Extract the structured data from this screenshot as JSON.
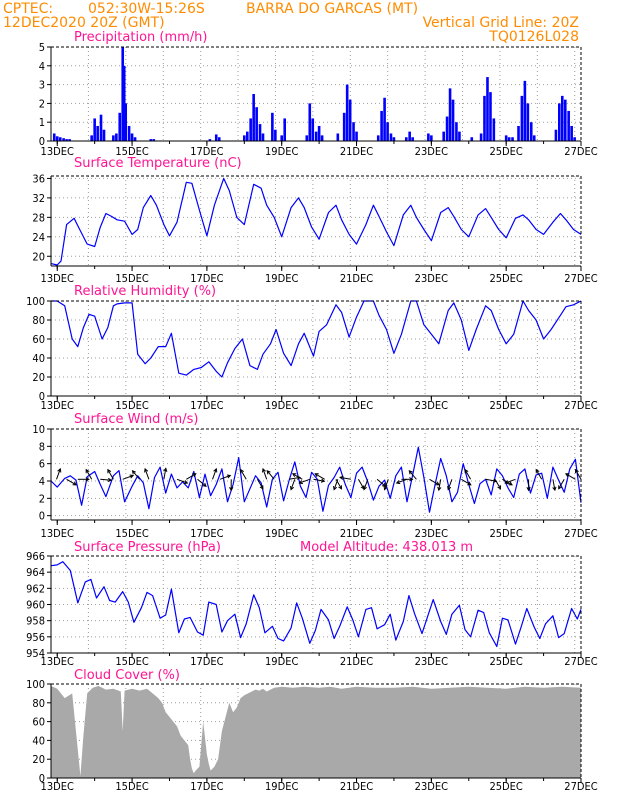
{
  "header": {
    "source": "CPTEC:",
    "coords": "052:30W-15:26S",
    "location": "BARRA DO GARCAS (MT)",
    "time": "12DEC2020 20Z (GMT)",
    "grid_note": "Vertical Grid Line: 20Z",
    "code": "TQ0126L028"
  },
  "colors": {
    "header": "#ff8c00",
    "title": "#ff1493",
    "line": "#0000ff",
    "cloud": "#a9a9a9",
    "grid": "#9e9e9e"
  },
  "x_axis": {
    "start_day": 12.833,
    "end_day": 27,
    "major_ticks": [
      13,
      15,
      17,
      19,
      21,
      23,
      25,
      27
    ],
    "tick_labels": [
      "13DEC",
      "15DEC",
      "17DEC",
      "19DEC",
      "21DEC",
      "23DEC",
      "25DEC",
      "27DEC"
    ]
  },
  "chart_data": [
    {
      "type": "bar",
      "title": "Precipitation (mm/h)",
      "ylim": [
        0,
        5
      ],
      "yticks": [
        0,
        1,
        2,
        3,
        4,
        5
      ],
      "bars": [
        [
          12.92,
          0.4
        ],
        [
          13.0,
          0.25
        ],
        [
          13.08,
          0.2
        ],
        [
          13.17,
          0.15
        ],
        [
          13.25,
          0.1
        ],
        [
          13.33,
          0.1
        ],
        [
          13.92,
          0.3
        ],
        [
          14.0,
          1.2
        ],
        [
          14.08,
          0.8
        ],
        [
          14.17,
          1.4
        ],
        [
          14.25,
          0.6
        ],
        [
          14.5,
          0.3
        ],
        [
          14.58,
          0.4
        ],
        [
          14.67,
          1.5
        ],
        [
          14.75,
          5.0
        ],
        [
          14.79,
          4.0
        ],
        [
          14.83,
          2.0
        ],
        [
          14.92,
          0.8
        ],
        [
          15.0,
          0.4
        ],
        [
          15.08,
          0.2
        ],
        [
          15.5,
          0.1
        ],
        [
          15.58,
          0.1
        ],
        [
          17.08,
          0.1
        ],
        [
          17.25,
          0.35
        ],
        [
          17.33,
          0.2
        ],
        [
          18.0,
          0.3
        ],
        [
          18.08,
          0.5
        ],
        [
          18.17,
          1.2
        ],
        [
          18.25,
          2.5
        ],
        [
          18.33,
          1.8
        ],
        [
          18.42,
          0.9
        ],
        [
          18.5,
          0.4
        ],
        [
          18.75,
          1.5
        ],
        [
          18.83,
          0.6
        ],
        [
          19.0,
          0.3
        ],
        [
          19.08,
          1.2
        ],
        [
          19.67,
          0.3
        ],
        [
          19.75,
          2.0
        ],
        [
          19.83,
          1.2
        ],
        [
          19.92,
          0.5
        ],
        [
          20.0,
          0.8
        ],
        [
          20.08,
          0.3
        ],
        [
          20.5,
          0.4
        ],
        [
          20.67,
          1.5
        ],
        [
          20.75,
          3.0
        ],
        [
          20.83,
          2.2
        ],
        [
          20.92,
          1.0
        ],
        [
          21.0,
          0.5
        ],
        [
          21.58,
          0.3
        ],
        [
          21.67,
          1.6
        ],
        [
          21.75,
          2.3
        ],
        [
          21.83,
          1.0
        ],
        [
          21.92,
          0.4
        ],
        [
          22.0,
          0.2
        ],
        [
          22.33,
          0.2
        ],
        [
          22.42,
          0.5
        ],
        [
          22.5,
          0.2
        ],
        [
          22.92,
          0.4
        ],
        [
          23.0,
          0.3
        ],
        [
          23.33,
          0.5
        ],
        [
          23.42,
          1.3
        ],
        [
          23.5,
          2.8
        ],
        [
          23.58,
          2.2
        ],
        [
          23.67,
          1.0
        ],
        [
          23.75,
          0.5
        ],
        [
          24.08,
          0.2
        ],
        [
          24.33,
          0.4
        ],
        [
          24.42,
          2.4
        ],
        [
          24.5,
          3.4
        ],
        [
          24.58,
          2.6
        ],
        [
          24.67,
          1.2
        ],
        [
          25.0,
          0.3
        ],
        [
          25.08,
          0.2
        ],
        [
          25.17,
          0.2
        ],
        [
          25.33,
          0.8
        ],
        [
          25.42,
          2.4
        ],
        [
          25.5,
          3.2
        ],
        [
          25.58,
          2.0
        ],
        [
          25.67,
          1.0
        ],
        [
          25.75,
          0.3
        ],
        [
          26.33,
          0.6
        ],
        [
          26.42,
          2.0
        ],
        [
          26.5,
          2.4
        ],
        [
          26.58,
          2.2
        ],
        [
          26.67,
          1.6
        ],
        [
          26.75,
          0.8
        ],
        [
          26.83,
          0.2
        ]
      ]
    },
    {
      "type": "line",
      "title": "Surface Temperature (nC)",
      "ylim": [
        18,
        36.5
      ],
      "yticks": [
        20,
        24,
        28,
        32,
        36
      ],
      "x": [
        12.83,
        13.0,
        13.1,
        13.25,
        13.45,
        13.6,
        13.8,
        14.0,
        14.15,
        14.3,
        14.45,
        14.6,
        14.8,
        15.0,
        15.15,
        15.3,
        15.5,
        15.65,
        15.85,
        16.0,
        16.2,
        16.45,
        16.6,
        16.8,
        17.0,
        17.2,
        17.45,
        17.6,
        17.8,
        18.0,
        18.25,
        18.45,
        18.6,
        18.8,
        19.0,
        19.25,
        19.45,
        19.6,
        19.8,
        20.0,
        20.25,
        20.45,
        20.6,
        20.8,
        21.0,
        21.25,
        21.45,
        21.6,
        21.8,
        22.0,
        22.25,
        22.45,
        22.6,
        22.8,
        23.0,
        23.25,
        23.45,
        23.6,
        23.8,
        24.0,
        24.25,
        24.45,
        24.6,
        24.8,
        25.0,
        25.25,
        25.45,
        25.6,
        25.8,
        26.0,
        26.25,
        26.45,
        26.6,
        26.8,
        27.0
      ],
      "y": [
        18.5,
        18.2,
        19,
        26.5,
        27.8,
        25.5,
        22.5,
        22,
        26,
        28.8,
        28.2,
        27.5,
        27.2,
        24.5,
        25.5,
        30,
        32.5,
        30.5,
        26.5,
        24.2,
        27,
        35.2,
        35,
        29.5,
        24.2,
        30.5,
        36,
        33.5,
        28,
        26.5,
        34.8,
        34,
        30.5,
        28,
        24,
        30,
        32,
        30,
        26,
        23.5,
        29,
        30.5,
        27.5,
        24.5,
        22.5,
        26.5,
        30.5,
        28.2,
        25,
        22.2,
        28.5,
        30.5,
        28,
        25.5,
        23.2,
        29,
        30,
        28.2,
        25.5,
        24,
        28.5,
        29.8,
        28,
        25.5,
        23.8,
        27.8,
        28.5,
        27.5,
        25.5,
        24.5,
        27,
        28.8,
        27.5,
        25.5,
        24.5
      ]
    },
    {
      "type": "line",
      "title": "Relative Humidity (%)",
      "ylim": [
        0,
        100
      ],
      "yticks": [
        0,
        20,
        40,
        60,
        80,
        100
      ],
      "x": [
        12.83,
        13.0,
        13.2,
        13.4,
        13.55,
        13.7,
        13.85,
        14.0,
        14.2,
        14.35,
        14.5,
        14.6,
        14.8,
        15.0,
        15.15,
        15.35,
        15.5,
        15.7,
        15.9,
        16.05,
        16.25,
        16.45,
        16.65,
        16.85,
        17.05,
        17.25,
        17.4,
        17.55,
        17.75,
        17.95,
        18.15,
        18.35,
        18.5,
        18.7,
        18.85,
        19.05,
        19.25,
        19.45,
        19.6,
        19.85,
        20.0,
        20.2,
        20.45,
        20.6,
        20.8,
        21.0,
        21.2,
        21.45,
        21.6,
        21.8,
        22.0,
        22.2,
        22.45,
        22.6,
        22.8,
        23.0,
        23.2,
        23.45,
        23.6,
        23.8,
        24.0,
        24.2,
        24.45,
        24.6,
        24.8,
        25.0,
        25.2,
        25.45,
        25.6,
        25.8,
        26.0,
        26.2,
        26.45,
        26.6,
        26.8,
        27.0
      ],
      "y": [
        100,
        100,
        95,
        60,
        52,
        72,
        86,
        84,
        60,
        72,
        95,
        97,
        98,
        98,
        44,
        34,
        40,
        52,
        52,
        66,
        24,
        22,
        28,
        30,
        36,
        26,
        20,
        35,
        50,
        60,
        32,
        28,
        44,
        55,
        70,
        45,
        32,
        55,
        66,
        42,
        68,
        75,
        96,
        88,
        62,
        83,
        100,
        100,
        85,
        70,
        45,
        65,
        100,
        100,
        75,
        65,
        55,
        90,
        98,
        80,
        48,
        70,
        95,
        90,
        70,
        55,
        65,
        100,
        90,
        80,
        60,
        70,
        85,
        94,
        96,
        100
      ]
    },
    {
      "type": "line",
      "title": "Surface Wind (m/s)",
      "ylim": [
        -0.5,
        10
      ],
      "yticks": [
        0,
        2,
        4,
        6,
        8,
        10
      ],
      "x": [
        12.83,
        13.0,
        13.2,
        13.35,
        13.5,
        13.65,
        13.8,
        14.0,
        14.15,
        14.3,
        14.5,
        14.65,
        14.8,
        15.0,
        15.15,
        15.3,
        15.45,
        15.6,
        15.75,
        15.9,
        16.05,
        16.2,
        16.35,
        16.5,
        16.65,
        16.8,
        16.95,
        17.1,
        17.25,
        17.4,
        17.55,
        17.7,
        17.85,
        18.0,
        18.15,
        18.3,
        18.45,
        18.6,
        18.75,
        18.9,
        19.05,
        19.2,
        19.35,
        19.5,
        19.65,
        19.8,
        19.95,
        20.1,
        20.25,
        20.4,
        20.55,
        20.7,
        20.85,
        21.0,
        21.15,
        21.3,
        21.45,
        21.6,
        21.75,
        21.9,
        22.05,
        22.2,
        22.35,
        22.5,
        22.65,
        22.8,
        22.95,
        23.1,
        23.25,
        23.4,
        23.55,
        23.7,
        23.85,
        24.0,
        24.15,
        24.3,
        24.45,
        24.6,
        24.75,
        24.9,
        25.05,
        25.2,
        25.35,
        25.5,
        25.65,
        25.8,
        25.95,
        26.1,
        26.25,
        26.4,
        26.55,
        26.7,
        26.85,
        27.0
      ],
      "y": [
        4,
        3.3,
        4.3,
        4.6,
        4.1,
        1.2,
        4.5,
        5.1,
        3.6,
        2.2,
        4.6,
        5.2,
        1.6,
        3.4,
        4.6,
        3.8,
        0.8,
        4.4,
        5.6,
        2.6,
        4.8,
        3.2,
        3.9,
        3.2,
        5.1,
        2.1,
        4.8,
        2.3,
        3.6,
        5.4,
        1.6,
        3.6,
        6.7,
        1.6,
        3.1,
        4.6,
        3.8,
        1.0,
        4.2,
        5.0,
        1.7,
        4.1,
        6.2,
        3.4,
        2.1,
        5.0,
        4.2,
        0.5,
        3.5,
        4.4,
        5.6,
        3.6,
        2.1,
        4.9,
        5.6,
        3.9,
        1.8,
        3.4,
        4.1,
        2.0,
        4.6,
        5.6,
        1.6,
        4.7,
        7.9,
        4.4,
        0.4,
        3.6,
        6.6,
        4.6,
        1.6,
        2.7,
        6.0,
        3.6,
        1.4,
        3.7,
        4.2,
        2.4,
        5.4,
        4.6,
        3.2,
        2.1,
        4.8,
        5.4,
        2.6,
        4.7,
        4.9,
        2.0,
        5.6,
        4.1,
        2.7,
        5.4,
        6.5,
        1.5
      ]
    },
    {
      "type": "line",
      "title": "Surface Pressure (hPa)",
      "annotation": "Model Altitude: 438.013 m",
      "ylim": [
        954,
        966
      ],
      "yticks": [
        954,
        956,
        958,
        960,
        962,
        964,
        966
      ],
      "x": [
        12.83,
        13.0,
        13.15,
        13.35,
        13.55,
        13.75,
        13.9,
        14.05,
        14.25,
        14.4,
        14.55,
        14.75,
        14.9,
        15.05,
        15.25,
        15.4,
        15.55,
        15.75,
        15.9,
        16.05,
        16.25,
        16.4,
        16.55,
        16.75,
        16.9,
        17.05,
        17.25,
        17.4,
        17.55,
        17.75,
        17.9,
        18.05,
        18.25,
        18.4,
        18.55,
        18.75,
        18.9,
        19.05,
        19.25,
        19.4,
        19.55,
        19.75,
        19.9,
        20.05,
        20.25,
        20.4,
        20.55,
        20.75,
        20.9,
        21.05,
        21.25,
        21.4,
        21.55,
        21.75,
        21.9,
        22.05,
        22.25,
        22.4,
        22.55,
        22.75,
        22.9,
        23.05,
        23.25,
        23.4,
        23.55,
        23.75,
        23.9,
        24.05,
        24.25,
        24.4,
        24.55,
        24.75,
        24.9,
        25.05,
        25.25,
        25.4,
        25.55,
        25.75,
        25.9,
        26.05,
        26.25,
        26.4,
        26.55,
        26.75,
        26.9,
        27.0
      ],
      "y": [
        964.8,
        964.9,
        965.3,
        964.2,
        960.2,
        962.8,
        963.1,
        960.8,
        962.2,
        960.5,
        960.3,
        961.6,
        960.3,
        957.8,
        959.6,
        961.5,
        961.1,
        958.3,
        958.7,
        961.9,
        956.5,
        958.2,
        958.4,
        956.6,
        956.2,
        960.3,
        960.0,
        956.6,
        958.0,
        958.8,
        955.9,
        957.6,
        961.2,
        959.6,
        956.5,
        957.3,
        955.8,
        955.5,
        957.1,
        960.2,
        958.3,
        955.2,
        956.8,
        959.4,
        958.1,
        955.8,
        957.3,
        959.7,
        958.1,
        956.0,
        959.4,
        959.6,
        957.0,
        957.5,
        958.8,
        955.6,
        957.9,
        961.1,
        958.9,
        956.4,
        958.5,
        960.6,
        957.9,
        956.3,
        958.8,
        959.9,
        956.9,
        956.0,
        959.3,
        959.0,
        956.5,
        954.8,
        958.3,
        958.1,
        955.1,
        957.2,
        959.5,
        957.2,
        955.8,
        957.6,
        958.6,
        955.9,
        956.4,
        959.5,
        958.2,
        959.4
      ]
    },
    {
      "type": "area",
      "title": "Cloud Cover (%)",
      "ylim": [
        0,
        100
      ],
      "yticks": [
        0,
        20,
        40,
        60,
        80,
        100
      ],
      "x": [
        12.83,
        13.0,
        13.2,
        13.4,
        13.55,
        13.62,
        13.7,
        13.8,
        13.95,
        14.1,
        14.3,
        14.5,
        14.7,
        14.75,
        14.8,
        15.0,
        15.2,
        15.4,
        15.55,
        15.7,
        15.8,
        15.9,
        16.0,
        16.1,
        16.2,
        16.3,
        16.4,
        16.5,
        16.55,
        16.6,
        16.65,
        16.7,
        16.8,
        16.9,
        17.0,
        17.05,
        17.1,
        17.15,
        17.2,
        17.3,
        17.4,
        17.5,
        17.6,
        17.7,
        17.8,
        17.9,
        18.0,
        18.1,
        18.2,
        18.3,
        18.4,
        18.5,
        18.6,
        18.7,
        18.8,
        19.0,
        19.3,
        19.6,
        20.0,
        20.3,
        20.6,
        21.0,
        21.5,
        22.0,
        22.5,
        23.0,
        23.5,
        24.0,
        24.5,
        25.0,
        25.5,
        26.0,
        26.5,
        27.0
      ],
      "y": [
        98,
        95,
        85,
        90,
        30,
        2,
        45,
        90,
        96,
        98,
        94,
        95,
        92,
        50,
        93,
        95,
        93,
        95,
        90,
        85,
        80,
        70,
        65,
        60,
        55,
        45,
        40,
        35,
        20,
        10,
        5,
        8,
        12,
        60,
        25,
        15,
        8,
        10,
        12,
        20,
        50,
        65,
        80,
        70,
        75,
        85,
        88,
        90,
        92,
        94,
        93,
        95,
        92,
        94,
        96,
        97,
        96,
        97,
        96,
        97,
        95,
        97,
        96,
        96,
        97,
        95,
        96,
        97,
        96,
        95,
        97,
        96,
        97,
        96
      ]
    }
  ],
  "wind_vectors": [
    [
      12.98,
      20
    ],
    [
      13.25,
      120
    ],
    [
      13.55,
      90
    ],
    [
      13.92,
      330
    ],
    [
      14.15,
      95
    ],
    [
      14.5,
      330
    ],
    [
      14.75,
      70
    ],
    [
      15.2,
      320
    ],
    [
      15.45,
      340
    ],
    [
      15.85,
      10
    ],
    [
      16.2,
      110
    ],
    [
      16.45,
      60
    ],
    [
      16.75,
      130
    ],
    [
      17.15,
      20
    ],
    [
      17.35,
      70
    ],
    [
      17.65,
      180
    ],
    [
      18.05,
      330
    ],
    [
      18.35,
      150
    ],
    [
      18.6,
      340
    ],
    [
      18.8,
      320
    ],
    [
      19.2,
      80
    ],
    [
      19.35,
      200
    ],
    [
      19.55,
      300
    ],
    [
      19.75,
      250
    ],
    [
      19.85,
      100
    ],
    [
      20.15,
      300
    ],
    [
      20.45,
      150
    ],
    [
      20.5,
      200
    ],
    [
      20.85,
      280
    ],
    [
      21.05,
      150
    ],
    [
      21.3,
      200
    ],
    [
      21.55,
      130
    ],
    [
      21.85,
      200
    ],
    [
      22.2,
      90
    ],
    [
      22.35,
      250
    ],
    [
      22.6,
      320
    ],
    [
      22.95,
      120
    ],
    [
      23.25,
      190
    ],
    [
      23.55,
      200
    ],
    [
      23.8,
      120
    ],
    [
      24.05,
      330
    ],
    [
      24.45,
      100
    ],
    [
      24.7,
      150
    ],
    [
      24.9,
      120
    ],
    [
      25.25,
      250
    ],
    [
      25.6,
      180
    ],
    [
      25.95,
      330
    ],
    [
      26.25,
      170
    ],
    [
      26.55,
      210
    ],
    [
      26.85,
      300
    ],
    [
      27.0,
      330
    ]
  ]
}
